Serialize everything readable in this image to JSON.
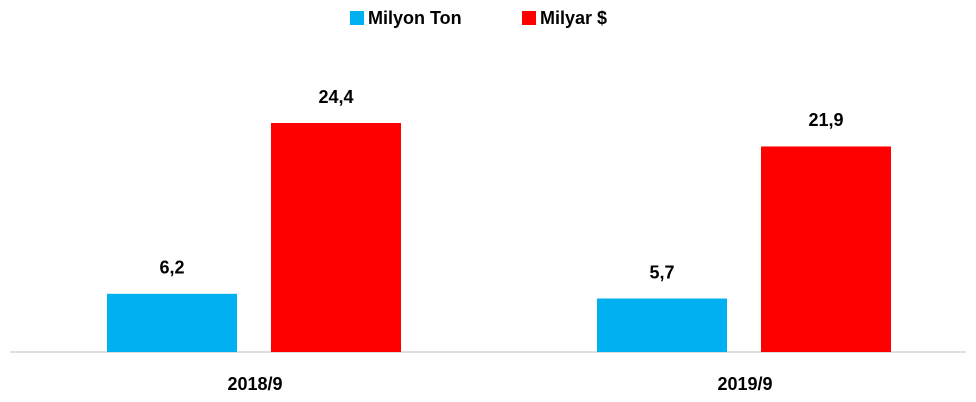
{
  "chart_data": {
    "type": "bar",
    "categories": [
      "2018/9",
      "2019/9"
    ],
    "series": [
      {
        "name": "Milyon Ton",
        "color": "#00b0f0",
        "values": [
          6.2,
          5.7
        ],
        "value_labels": [
          "6,2",
          "5,7"
        ]
      },
      {
        "name": "Milyar $",
        "color": "#ff0000",
        "values": [
          24.4,
          21.9
        ],
        "value_labels": [
          "24,4",
          "21,9"
        ]
      }
    ],
    "legend": "top"
  }
}
